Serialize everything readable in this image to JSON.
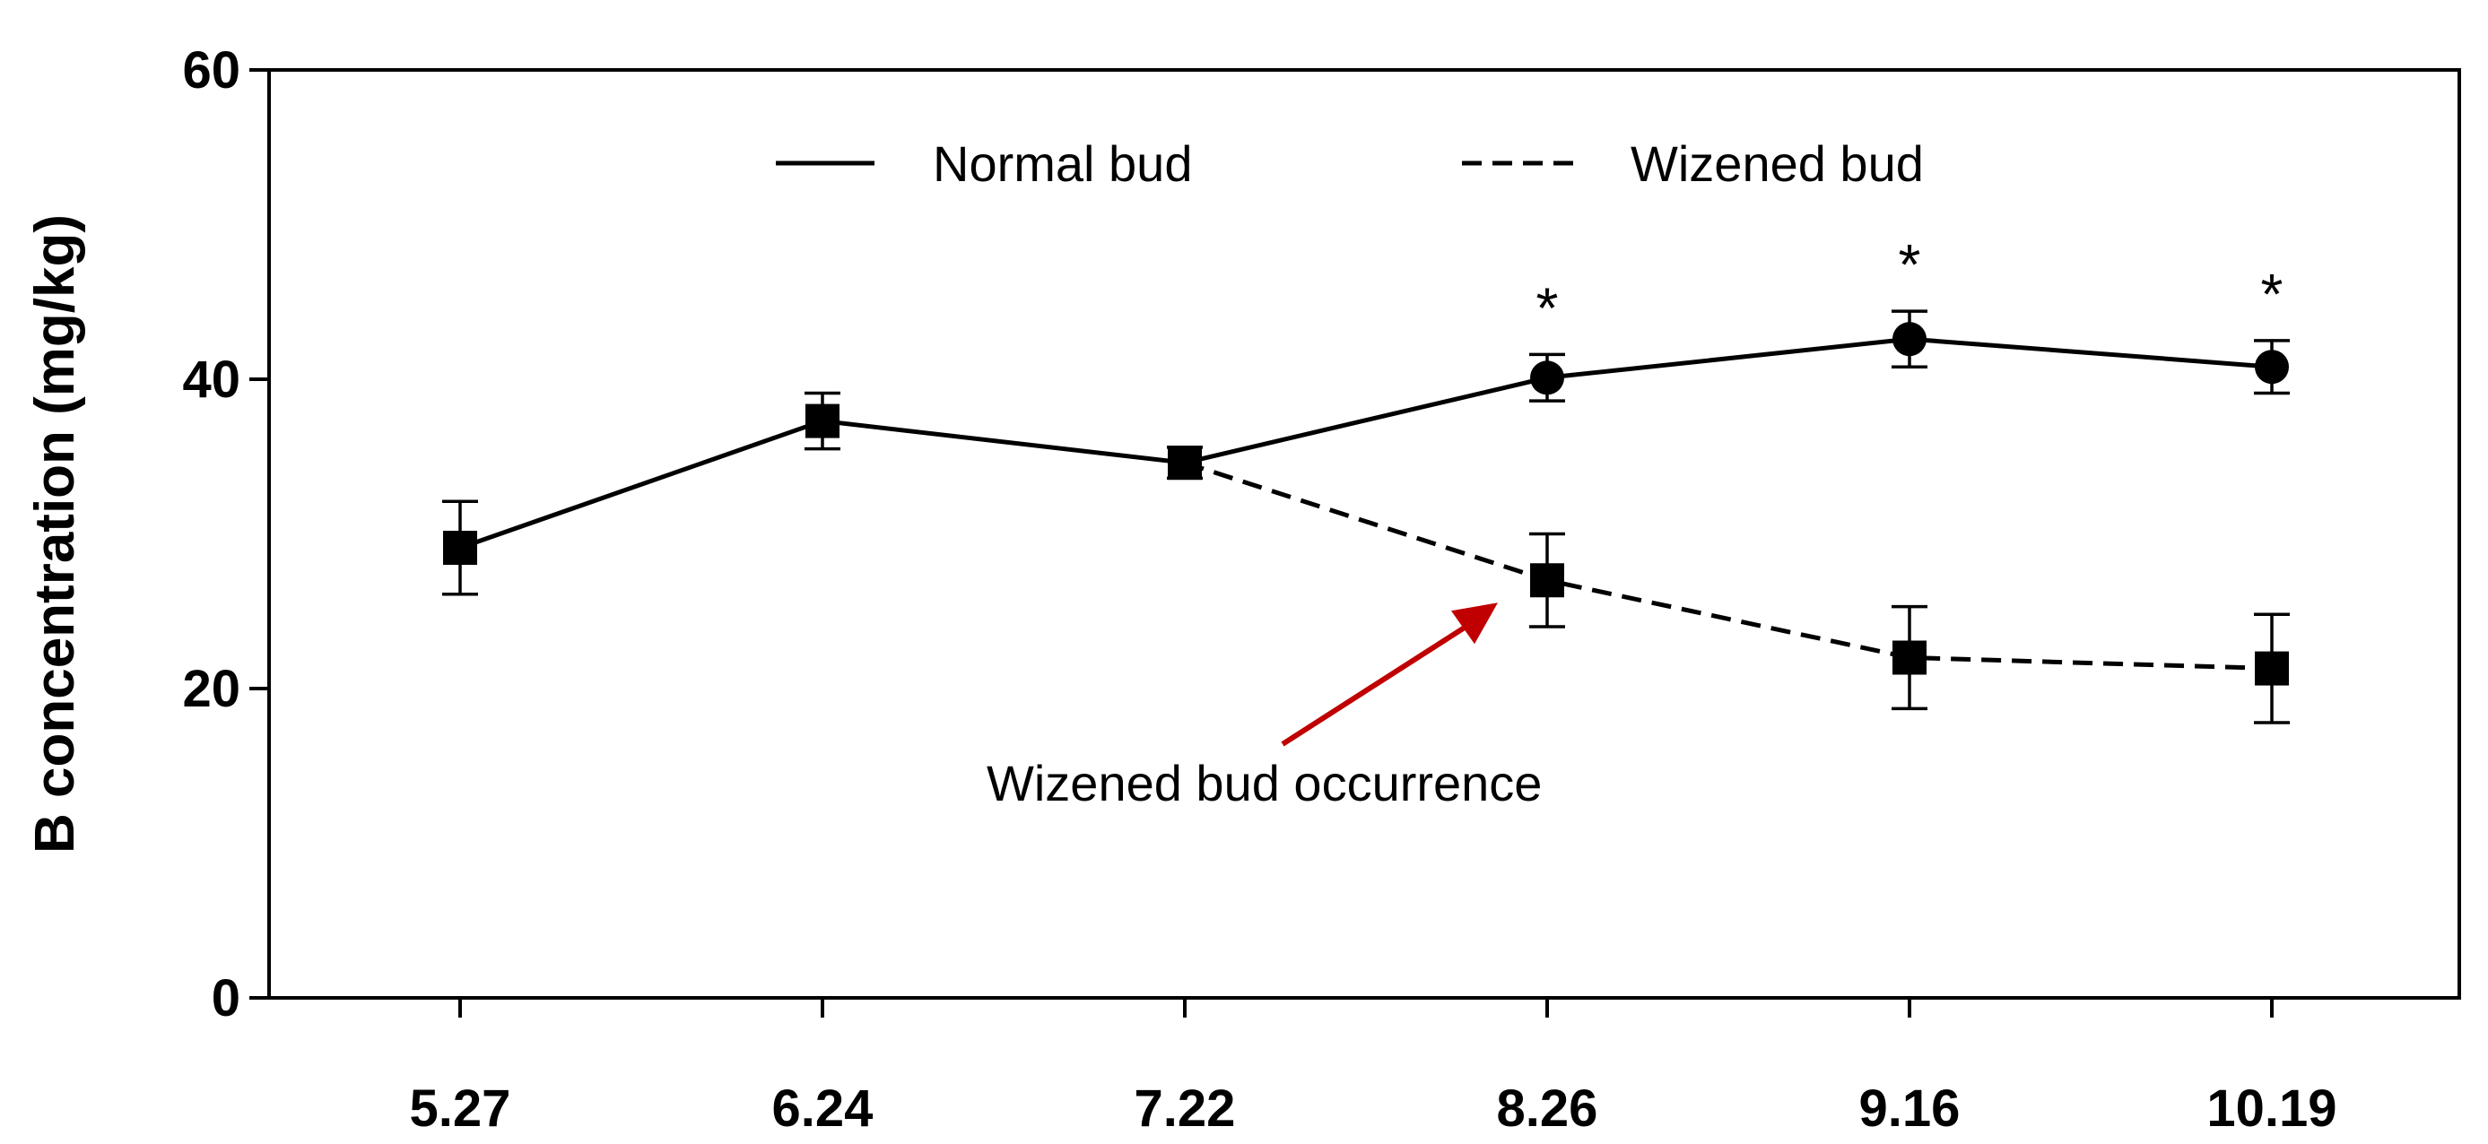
{
  "chart_data": {
    "type": "line",
    "ylabel": "B concentration (mg/kg)",
    "xlabel": "",
    "ylim": [
      0,
      60
    ],
    "yticks": [
      "0",
      "20",
      "40",
      "60"
    ],
    "categories": [
      "5.27",
      "6.24",
      "7.22",
      "8.26",
      "9.16",
      "10.19"
    ],
    "grid": false,
    "legend_position": "top",
    "series": [
      {
        "name": "Normal bud",
        "line_style": "solid",
        "marker": "circle",
        "values": [
          null,
          null,
          null,
          40.1,
          42.6,
          40.8
        ],
        "errors": [
          null,
          null,
          null,
          1.5,
          1.8,
          1.7
        ]
      },
      {
        "name": "Wizened bud",
        "line_style": "dashed",
        "marker": "square",
        "values": [
          null,
          null,
          null,
          27.0,
          22.0,
          21.3
        ],
        "errors": [
          null,
          null,
          null,
          3.0,
          3.3,
          3.5
        ]
      },
      {
        "name": "",
        "line_style": "solid",
        "marker": "square",
        "values": [
          29.1,
          37.3,
          34.6,
          null,
          null,
          null
        ],
        "errors": [
          3.0,
          1.8,
          1.0,
          null,
          null,
          null
        ]
      }
    ],
    "significance_marks": [
      {
        "category": "8.26",
        "label": "*"
      },
      {
        "category": "9.16",
        "label": "*"
      },
      {
        "category": "10.19",
        "label": "*"
      }
    ],
    "annotations": [
      {
        "text": "Wizened bud occurrence",
        "points_to_category": "8.26",
        "arrow_color": "#c00000"
      }
    ]
  }
}
